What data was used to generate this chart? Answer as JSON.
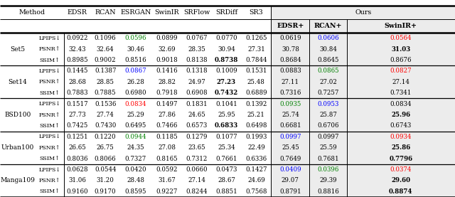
{
  "datasets": [
    "Set5",
    "Set14",
    "BSD100",
    "Urban100",
    "Manga109"
  ],
  "metric_keys": [
    "LPIPS",
    "PSNR",
    "SSIM"
  ],
  "metric_labels": [
    "LPIPS↓",
    "PSNR↑",
    "SSIM↑"
  ],
  "col_keys": [
    "EDSR",
    "RCAN",
    "ESRGAN",
    "SwinIR",
    "SRFlow",
    "SRDiff",
    "SR3",
    "EDSR+",
    "RCAN+",
    "SwinIR+"
  ],
  "data": {
    "Set5": {
      "LPIPS": {
        "EDSR": "0.0922",
        "RCAN": "0.1096",
        "ESRGAN": "0.0596",
        "SwinIR": "0.0899",
        "SRFlow": "0.0767",
        "SRDiff": "0.0770",
        "SR3": "0.1265",
        "EDSR+": "0.0619",
        "RCAN+": "0.0606",
        "SwinIR+": "0.0564",
        "ESRGAN_color": "green",
        "RCAN+_color": "blue",
        "SwinIR+_color": "red"
      },
      "PSNR": {
        "EDSR": "32.43",
        "RCAN": "32.64",
        "ESRGAN": "30.46",
        "SwinIR": "32.69",
        "SRFlow": "28.35",
        "SRDiff": "30.94",
        "SR3": "27.31",
        "EDSR+": "30.78",
        "RCAN+": "30.84",
        "SwinIR+": "31.03",
        "SwinIR+_bold": true
      },
      "SSIM": {
        "EDSR": "0.8985",
        "RCAN": "0.9002",
        "ESRGAN": "0.8516",
        "SwinIR": "0.9018",
        "SRFlow": "0.8138",
        "SRDiff": "0.8738",
        "SR3": "0.7844",
        "EDSR+": "0.8684",
        "RCAN+": "0.8645",
        "SwinIR+": "0.8676",
        "SRDiff_bold": true
      }
    },
    "Set14": {
      "LPIPS": {
        "EDSR": "0.1445",
        "RCAN": "0.1387",
        "ESRGAN": "0.0867",
        "SwinIR": "0.1416",
        "SRFlow": "0.1318",
        "SRDiff": "0.1009",
        "SR3": "0.1531",
        "EDSR+": "0.0883",
        "RCAN+": "0.0865",
        "SwinIR+": "0.0827",
        "ESRGAN_color": "blue",
        "RCAN+_color": "green",
        "SwinIR+_color": "red"
      },
      "PSNR": {
        "EDSR": "28.68",
        "RCAN": "28.85",
        "ESRGAN": "26.28",
        "SwinIR": "28.82",
        "SRFlow": "24.97",
        "SRDiff": "27.23",
        "SR3": "25.48",
        "EDSR+": "27.11",
        "RCAN+": "27.02",
        "SwinIR+": "27.14",
        "SRDiff_bold": true
      },
      "SSIM": {
        "EDSR": "0.7883",
        "RCAN": "0.7885",
        "ESRGAN": "0.6980",
        "SwinIR": "0.7918",
        "SRFlow": "0.6908",
        "SRDiff": "0.7432",
        "SR3": "0.6889",
        "EDSR+": "0.7316",
        "RCAN+": "0.7257",
        "SwinIR+": "0.7341",
        "SRDiff_bold": true
      }
    },
    "BSD100": {
      "LPIPS": {
        "EDSR": "0.1517",
        "RCAN": "0.1536",
        "ESRGAN": "0.0834",
        "SwinIR": "0.1497",
        "SRFlow": "0.1831",
        "SRDiff": "0.1041",
        "SR3": "0.1392",
        "EDSR+": "0.0935",
        "RCAN+": "0.0953",
        "SwinIR+": "0.0834",
        "ESRGAN_color": "red",
        "EDSR+_color": "green",
        "RCAN+_color": "blue"
      },
      "PSNR": {
        "EDSR": "27.73",
        "RCAN": "27.74",
        "ESRGAN": "25.29",
        "SwinIR": "27.86",
        "SRFlow": "24.65",
        "SRDiff": "25.95",
        "SR3": "25.21",
        "EDSR+": "25.74",
        "RCAN+": "25.87",
        "SwinIR+": "25.96",
        "SwinIR+_bold": true
      },
      "SSIM": {
        "EDSR": "0.7425",
        "RCAN": "0.7430",
        "ESRGAN": "0.6495",
        "SwinIR": "0.7466",
        "SRFlow": "0.6573",
        "SRDiff": "0.6833",
        "SR3": "0.6498",
        "EDSR+": "0.6681",
        "RCAN+": "0.6706",
        "SwinIR+": "0.6743",
        "SRDiff_bold": true
      }
    },
    "Urban100": {
      "LPIPS": {
        "EDSR": "0.1251",
        "RCAN": "0.1220",
        "ESRGAN": "0.0944",
        "SwinIR": "0.1185",
        "SRFlow": "0.1279",
        "SRDiff": "0.1077",
        "SR3": "0.1993",
        "EDSR+": "0.0997",
        "RCAN+": "0.0997",
        "SwinIR+": "0.0934",
        "ESRGAN_color": "green",
        "EDSR+_color": "blue",
        "SwinIR+_color": "red"
      },
      "PSNR": {
        "EDSR": "26.65",
        "RCAN": "26.75",
        "ESRGAN": "24.35",
        "SwinIR": "27.08",
        "SRFlow": "23.65",
        "SRDiff": "25.34",
        "SR3": "22.49",
        "EDSR+": "25.45",
        "RCAN+": "25.59",
        "SwinIR+": "25.86",
        "SwinIR+_bold": true
      },
      "SSIM": {
        "EDSR": "0.8036",
        "RCAN": "0.8066",
        "ESRGAN": "0.7327",
        "SwinIR": "0.8165",
        "SRFlow": "0.7312",
        "SRDiff": "0.7661",
        "SR3": "0.6336",
        "EDSR+": "0.7649",
        "RCAN+": "0.7681",
        "SwinIR+": "0.7796",
        "SwinIR+_bold": true
      }
    },
    "Manga109": {
      "LPIPS": {
        "EDSR": "0.0628",
        "RCAN": "0.0544",
        "ESRGAN": "0.0420",
        "SwinIR": "0.0592",
        "SRFlow": "0.0660",
        "SRDiff": "0.0473",
        "SR3": "0.1427",
        "EDSR+": "0.0409",
        "RCAN+": "0.0396",
        "SwinIR+": "0.0374",
        "EDSR+_color": "blue",
        "RCAN+_color": "green",
        "SwinIR+_color": "red"
      },
      "PSNR": {
        "EDSR": "31.06",
        "RCAN": "31.20",
        "ESRGAN": "28.48",
        "SwinIR": "31.67",
        "SRFlow": "27.14",
        "SRDiff": "28.67",
        "SR3": "24.69",
        "EDSR+": "29.07",
        "RCAN+": "29.39",
        "SwinIR+": "29.60",
        "SwinIR+_bold": true
      },
      "SSIM": {
        "EDSR": "0.9160",
        "RCAN": "0.9170",
        "ESRGAN": "0.8595",
        "SwinIR": "0.9227",
        "SRFlow": "0.8244",
        "SRDiff": "0.8851",
        "SR3": "0.7568",
        "EDSR+": "0.8791",
        "RCAN+": "0.8816",
        "SwinIR+": "0.8874",
        "SwinIR+_bold": true
      }
    }
  },
  "bg_color": "#ffffff",
  "ours_bg": "#ececec",
  "fs_header": 6.8,
  "fs_data": 6.2,
  "fs_dataset": 6.5,
  "fs_metric": 5.8
}
